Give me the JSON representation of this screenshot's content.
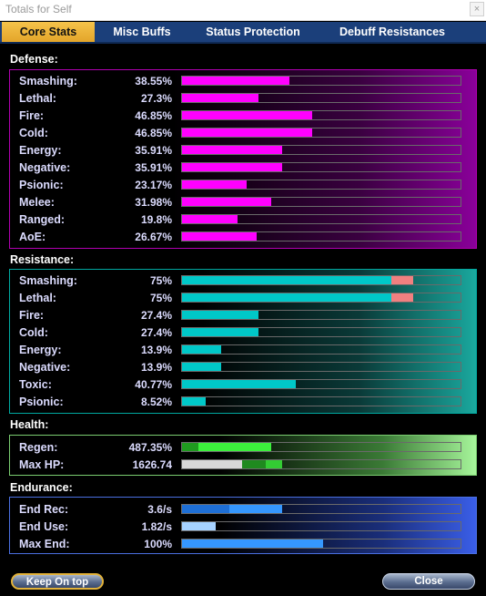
{
  "window": {
    "title": "Totals for Self",
    "close_glyph": "×"
  },
  "tabs": [
    {
      "label": "Core Stats",
      "active": true
    },
    {
      "label": "Misc Buffs",
      "active": false
    },
    {
      "label": "Status Protection",
      "active": false
    },
    {
      "label": "Debuff Resistances",
      "active": false
    }
  ],
  "defense": {
    "label": "Defense:",
    "color": "#ff00ff",
    "rows": [
      {
        "label": "Smashing:",
        "value": "38.55%",
        "fill_pct": 38.55
      },
      {
        "label": "Lethal:",
        "value": "27.3%",
        "fill_pct": 27.3
      },
      {
        "label": "Fire:",
        "value": "46.85%",
        "fill_pct": 46.85
      },
      {
        "label": "Cold:",
        "value": "46.85%",
        "fill_pct": 46.85
      },
      {
        "label": "Energy:",
        "value": "35.91%",
        "fill_pct": 35.91
      },
      {
        "label": "Negative:",
        "value": "35.91%",
        "fill_pct": 35.91
      },
      {
        "label": "Psionic:",
        "value": "23.17%",
        "fill_pct": 23.17
      },
      {
        "label": "Melee:",
        "value": "31.98%",
        "fill_pct": 31.98
      },
      {
        "label": "Ranged:",
        "value": "19.8%",
        "fill_pct": 19.8
      },
      {
        "label": "AoE:",
        "value": "26.67%",
        "fill_pct": 26.67
      }
    ]
  },
  "resistance": {
    "label": "Resistance:",
    "color": "#00c8c8",
    "overcap_color": "#f08080",
    "rows": [
      {
        "label": "Smashing:",
        "value": "75%",
        "fill_pct": 75,
        "overcap_pct": 8
      },
      {
        "label": "Lethal:",
        "value": "75%",
        "fill_pct": 75,
        "overcap_pct": 8
      },
      {
        "label": "Fire:",
        "value": "27.4%",
        "fill_pct": 27.4
      },
      {
        "label": "Cold:",
        "value": "27.4%",
        "fill_pct": 27.4
      },
      {
        "label": "Energy:",
        "value": "13.9%",
        "fill_pct": 13.9
      },
      {
        "label": "Negative:",
        "value": "13.9%",
        "fill_pct": 13.9
      },
      {
        "label": "Toxic:",
        "value": "40.77%",
        "fill_pct": 40.77
      },
      {
        "label": "Psionic:",
        "value": "8.52%",
        "fill_pct": 8.52
      }
    ]
  },
  "health": {
    "label": "Health:",
    "rows": [
      {
        "label": "Regen:",
        "value": "487.35%",
        "segments": [
          {
            "pct": 6,
            "color": "#1f9a1f"
          },
          {
            "pct": 26,
            "color": "#3cf03c"
          }
        ]
      },
      {
        "label": "Max HP:",
        "value": "1626.74",
        "segments": [
          {
            "pct": 21.5,
            "color": "#d8d8d8"
          },
          {
            "pct": 8.5,
            "color": "#1f8a1f"
          },
          {
            "pct": 6,
            "color": "#33cc33"
          }
        ]
      }
    ]
  },
  "endurance": {
    "label": "Endurance:",
    "rows": [
      {
        "label": "End Rec:",
        "value": "3.6/s",
        "segments": [
          {
            "pct": 17,
            "color": "#1e6fd6"
          },
          {
            "pct": 19,
            "color": "#3597ff"
          }
        ]
      },
      {
        "label": "End Use:",
        "value": "1.82/s",
        "segments": [
          {
            "pct": 12,
            "color": "#a6d2ff"
          }
        ]
      },
      {
        "label": "Max End:",
        "value": "100%",
        "segments": [
          {
            "pct": 50.5,
            "color": "#3597ff"
          }
        ]
      }
    ]
  },
  "buttons": {
    "keep_on_top": "Keep On top",
    "close": "Close"
  }
}
